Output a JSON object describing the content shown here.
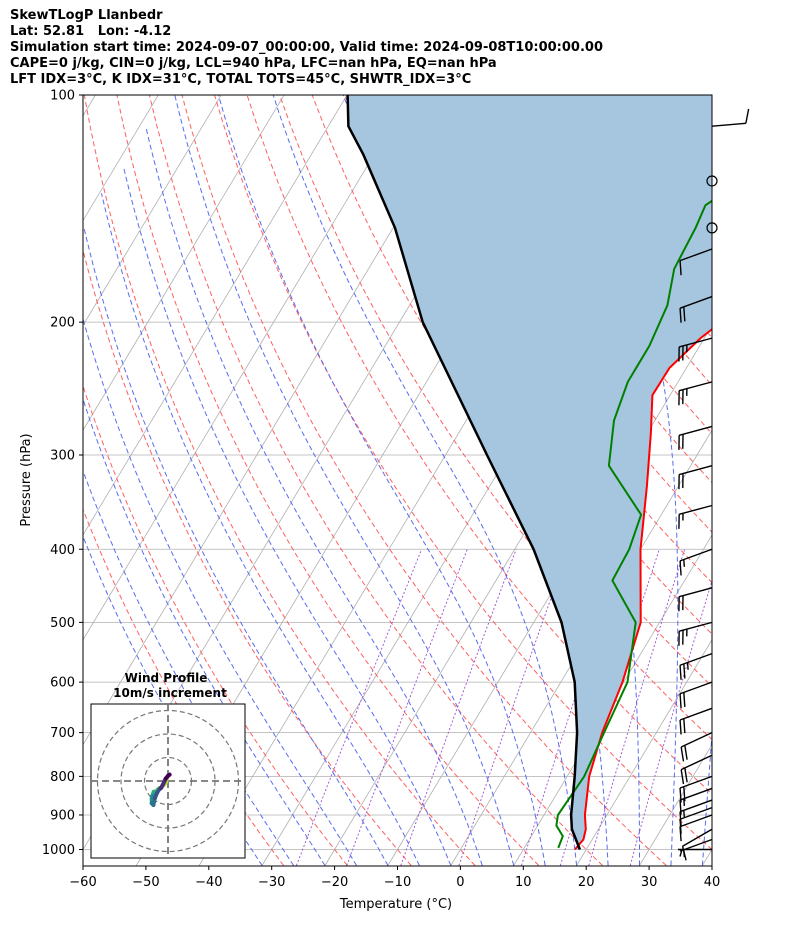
{
  "header": {
    "line1": "SkewTLogP Llanbedr",
    "line2": "Lat: 52.81   Lon: -4.12",
    "line3": "Simulation start time: 2024-09-07_00:00:00, Valid time: 2024-09-08T10:00:00.00",
    "line4": "CAPE=0 j/kg, CIN=0 j/kg, LCL=940 hPa, LFC=nan hPa, EQ=nan hPa",
    "line5": "LFT IDX=3°C, K IDX=31°C, TOTAL TOTS=45°C, SHWTR_IDX=3°C"
  },
  "chart_data": {
    "type": "line",
    "subtype": "skew-t log-p",
    "xlabel": "Temperature (°C)",
    "ylabel": "Pressure (hPa)",
    "xlim": [
      -60,
      40
    ],
    "ylim": [
      1050,
      100
    ],
    "y_scale": "log",
    "grid": true,
    "x_ticks": [
      -60,
      -50,
      -40,
      -30,
      -20,
      -10,
      0,
      10,
      20,
      30,
      40
    ],
    "x_tick_labels": [
      "−60",
      "−50",
      "−40",
      "−30",
      "−20",
      "−10",
      "0",
      "10",
      "20",
      "30",
      "40"
    ],
    "y_ticks": [
      100,
      200,
      300,
      400,
      500,
      600,
      700,
      800,
      900,
      1000
    ],
    "y_tick_labels": [
      "100",
      "200",
      "300",
      "400",
      "500",
      "600",
      "700",
      "800",
      "900",
      "1000"
    ],
    "series": [
      {
        "role": "temperature",
        "color": "#ff0000",
        "points": [
          [
            18.2,
            1000
          ],
          [
            18.6,
            970
          ],
          [
            18.0,
            940
          ],
          [
            16.5,
            900
          ],
          [
            13.5,
            800
          ],
          [
            11.4,
            700
          ],
          [
            9.8,
            600
          ],
          [
            7.0,
            500
          ],
          [
            0.0,
            400
          ],
          [
            -5.0,
            330
          ],
          [
            -9.5,
            280
          ],
          [
            -12.8,
            250
          ],
          [
            -12.7,
            230
          ],
          [
            -10.6,
            210
          ],
          [
            -7.0,
            190
          ],
          [
            -3.0,
            170
          ],
          [
            0.0,
            150
          ],
          [
            2.8,
            130
          ],
          [
            5.2,
            120
          ],
          [
            6.8,
            110
          ],
          [
            7.6,
            100
          ]
        ]
      },
      {
        "role": "dewpoint",
        "color": "#008000",
        "points": [
          [
            15.4,
            995
          ],
          [
            15.0,
            960
          ],
          [
            13.0,
            930
          ],
          [
            12.2,
            900
          ],
          [
            12.7,
            800
          ],
          [
            11.7,
            700
          ],
          [
            10.6,
            600
          ],
          [
            6.2,
            500
          ],
          [
            -1.5,
            440
          ],
          [
            -1.8,
            400
          ],
          [
            -3.2,
            360
          ],
          [
            -13.0,
            310
          ],
          [
            -16.5,
            270
          ],
          [
            -18.0,
            240
          ],
          [
            -18.0,
            215
          ],
          [
            -19.0,
            190
          ],
          [
            -21.4,
            170
          ],
          [
            -21.9,
            150
          ],
          [
            -22.5,
            140
          ],
          [
            -17.2,
            125
          ],
          [
            -13.0,
            110
          ],
          [
            -9.5,
            100
          ]
        ]
      },
      {
        "role": "parcel",
        "color": "#000000",
        "points": [
          [
            19.0,
            1000
          ],
          [
            15.8,
            940
          ],
          [
            14.3,
            900
          ],
          [
            11.2,
            800
          ],
          [
            7.4,
            700
          ],
          [
            2.2,
            600
          ],
          [
            -5.6,
            500
          ],
          [
            -17.0,
            400
          ],
          [
            -33.4,
            300
          ],
          [
            -56.3,
            200
          ],
          [
            -69.7,
            150
          ],
          [
            -81.7,
            120
          ],
          [
            -86.8,
            110
          ],
          [
            -89.9,
            100
          ]
        ]
      }
    ],
    "shading": {
      "between": [
        "parcel",
        "temperature"
      ],
      "color": "#a6c6e0"
    },
    "wind_barbs": [
      {
        "p": 1000,
        "speed_kt": 5,
        "dir": 270
      },
      {
        "p": 970,
        "speed_kt": 5,
        "dir": 250
      },
      {
        "p": 940,
        "speed_kt": 10,
        "dir": 240
      },
      {
        "p": 900,
        "speed_kt": 10,
        "dir": 250
      },
      {
        "p": 880,
        "speed_kt": 10,
        "dir": 250
      },
      {
        "p": 860,
        "speed_kt": 15,
        "dir": 250
      },
      {
        "p": 830,
        "speed_kt": 15,
        "dir": 250
      },
      {
        "p": 800,
        "speed_kt": 20,
        "dir": 250
      },
      {
        "p": 750,
        "speed_kt": 20,
        "dir": 245
      },
      {
        "p": 700,
        "speed_kt": 20,
        "dir": 245
      },
      {
        "p": 650,
        "speed_kt": 20,
        "dir": 250
      },
      {
        "p": 600,
        "speed_kt": 20,
        "dir": 250
      },
      {
        "p": 550,
        "speed_kt": 25,
        "dir": 250
      },
      {
        "p": 500,
        "speed_kt": 25,
        "dir": 255
      },
      {
        "p": 450,
        "speed_kt": 20,
        "dir": 255
      },
      {
        "p": 400,
        "speed_kt": 15,
        "dir": 250
      },
      {
        "p": 350,
        "speed_kt": 15,
        "dir": 255
      },
      {
        "p": 310,
        "speed_kt": 20,
        "dir": 255
      },
      {
        "p": 275,
        "speed_kt": 20,
        "dir": 255
      },
      {
        "p": 240,
        "speed_kt": 25,
        "dir": 255
      },
      {
        "p": 210,
        "speed_kt": 25,
        "dir": 255
      },
      {
        "p": 185,
        "speed_kt": 20,
        "dir": 250
      },
      {
        "p": 160,
        "speed_kt": 10,
        "dir": 250
      },
      {
        "p": 150,
        "speed_kt": 0,
        "dir": 0
      },
      {
        "p": 130,
        "speed_kt": 0,
        "dir": 0
      },
      {
        "p": 110,
        "speed_kt": 10,
        "dir": 85
      }
    ],
    "hodograph": {
      "title_line1": "Wind Profile",
      "title_line2": "10m/s increment",
      "rings_ms": [
        10,
        20,
        30
      ],
      "points_ms": [
        [
          0.3,
          2.3
        ],
        [
          -0.2,
          1.9
        ],
        [
          -0.9,
          -0.7
        ],
        [
          -2.9,
          -2.9
        ],
        [
          -3.8,
          -3.1
        ],
        [
          -5.3,
          -4.5
        ],
        [
          -6.1,
          -4.6
        ],
        [
          -6.4,
          -5.6
        ],
        [
          -6.3,
          -6.2
        ],
        [
          -6.9,
          -6.6
        ],
        [
          -6.9,
          -8.0
        ],
        [
          -6.9,
          -9.5
        ],
        [
          -6.2,
          -10.2
        ],
        [
          -5.6,
          -7.3
        ],
        [
          -4.6,
          -4.9
        ],
        [
          -3.9,
          -3.8
        ],
        [
          -3.0,
          -3.0
        ],
        [
          -2.2,
          -1.6
        ],
        [
          -1.0,
          1.0
        ],
        [
          0.1,
          2.3
        ],
        [
          0.7,
          2.7
        ]
      ]
    }
  }
}
